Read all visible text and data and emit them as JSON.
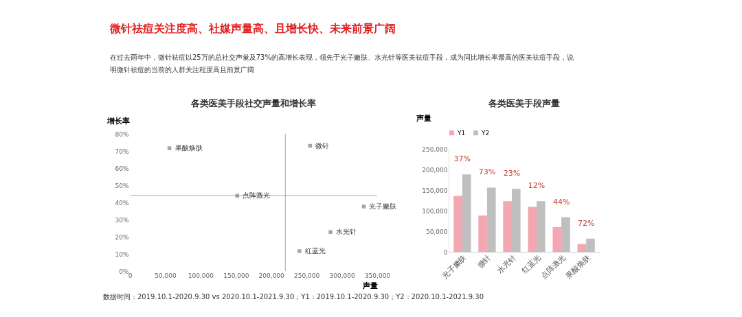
{
  "chart_data": [
    {
      "type": "other",
      "title": "微针祛痘关注度高、社媒声量高、且增长快、未来前景广阔",
      "subtitle": "在过去两年中，微针祛痘以25万的总社交声量及73%的高增长表现，领先于光子嫩肤、水光针等医美祛痘手段，成为同比增长率最高的医美祛痘手段，说明微针祛痘的当前的人群关注程度高且前景广阔"
    },
    {
      "type": "scatter",
      "title": "各类医美手段社交声量和增长率",
      "xlabel": "声量",
      "ylabel": "增长率",
      "x": [
        56000,
        255000,
        152000,
        331000,
        284000,
        240000
      ],
      "series": [
        {
          "color": "#808080",
          "values": [
            71.6,
            73,
            43.9,
            37.6,
            22.7,
            11.6
          ]
        }
      ],
      "marker": "square",
      "xlim": [
        0,
        350000
      ],
      "xticks": [
        0,
        {
          "value": 50000,
          "label": "50,000"
        },
        {
          "value": 100000,
          "label": "100,000"
        },
        {
          "value": 150000,
          "label": "150,000"
        },
        {
          "value": 200000,
          "label": "200,000"
        },
        {
          "value": 250000,
          "label": "250,000"
        },
        {
          "value": 300000,
          "label": "300,000"
        },
        {
          "value": 350000,
          "label": "350,000"
        }
      ],
      "ylim": [
        0,
        80
      ],
      "yticks": [
        {
          "value": 0,
          "label": "0%"
        },
        {
          "value": 10,
          "label": "10%"
        },
        {
          "value": 20,
          "label": "20%"
        },
        {
          "value": 30,
          "label": "30%"
        },
        {
          "value": 40,
          "label": "40%"
        },
        {
          "value": 50,
          "label": "50%"
        },
        {
          "value": 60,
          "label": "60%"
        },
        {
          "value": 70,
          "label": "70%"
        },
        {
          "value": 80,
          "label": "80%"
        }
      ],
      "ref_lines": [
        {
          "axis": "x",
          "value": 220000,
          "color": "#a6a6a6"
        },
        {
          "axis": "y",
          "value": 44,
          "color": "#a6a6a6"
        }
      ],
      "annotations": [
        {
          "text": "果酸焕肤",
          "x": 56000,
          "y": 71.6
        },
        {
          "text": "微针",
          "x": 255000,
          "y": 73
        },
        {
          "text": "点阵激光",
          "x": 152000,
          "y": 43.9
        },
        {
          "text": "光子嫩肤",
          "x": 331000,
          "y": 37.6
        },
        {
          "text": "水光针",
          "x": 284000,
          "y": 22.7
        },
        {
          "text": "红蓝光",
          "x": 240000,
          "y": 11.6
        },
        "数据时间：2019.10.1-2020.9.30 vs 2020.10.1-2021.9.30；Y1：2019.10.1-2020.9.30；Y2：2020.10.1-2021.9.30"
      ],
      "grid": false,
      "legend": false
    },
    {
      "type": "bar",
      "title": "各类医美手段声量",
      "ylabel": "声量",
      "categories": [
        "光子嫩肤",
        "微针",
        "水光针",
        "红蓝光",
        "点阵激光",
        "果酸焕肤"
      ],
      "series": [
        {
          "name": "Y1",
          "color": "#f4a7b0",
          "values": [
            136000,
            88000,
            123000,
            109000,
            60000,
            19000
          ]
        },
        {
          "name": "Y2",
          "color": "#bfbfbf",
          "values": [
            188000,
            156000,
            153000,
            123000,
            84000,
            32000
          ]
        }
      ],
      "ylim": [
        0,
        250000
      ],
      "yticks": [
        0,
        {
          "value": 50000,
          "label": "50,000"
        },
        {
          "value": 100000,
          "label": "100,000"
        },
        {
          "value": 150000,
          "label": "150,000"
        },
        {
          "value": 200000,
          "label": "200,000"
        },
        {
          "value": 250000,
          "label": "250,000"
        }
      ],
      "annotations": [
        "37%",
        "73%",
        "23%",
        "12%",
        "44%",
        "72%"
      ],
      "grid": false,
      "legend": "top"
    }
  ]
}
